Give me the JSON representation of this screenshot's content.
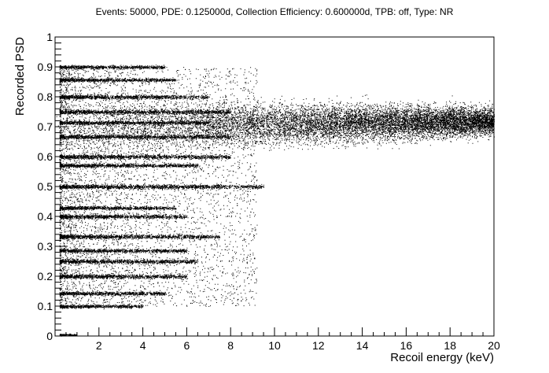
{
  "chart_data": {
    "type": "scatter",
    "title": "Events: 50000, PDE: 0.125000d, Collection Efficiency: 0.600000d, TPB: off, Type: NR",
    "xlabel": "Recoil energy (keV)",
    "ylabel": "Recorded PSD",
    "xlim": [
      0,
      20
    ],
    "ylim": [
      0,
      1
    ],
    "x_ticks": [
      "2",
      "4",
      "6",
      "8",
      "10",
      "12",
      "14",
      "16",
      "18",
      "20"
    ],
    "y_ticks": [
      "0",
      "0.1",
      "0.2",
      "0.3",
      "0.4",
      "0.5",
      "0.6",
      "0.7",
      "0.8",
      "0.9",
      "1"
    ],
    "grid": false,
    "legend": "none",
    "marker_color": "#000000",
    "events": 50000,
    "bands": [
      {
        "x_min": 0.2,
        "x_max": 1.0,
        "y_center": 0.005,
        "y_spread": 0.005
      },
      {
        "x_min": 0.2,
        "x_max": 9.5,
        "y_center": 0.5,
        "y_spread": 0.012
      },
      {
        "x_min": 0.2,
        "x_max": 7.5,
        "y_center": 0.333,
        "y_spread": 0.012
      },
      {
        "x_min": 0.2,
        "x_max": 8.0,
        "y_center": 0.667,
        "y_spread": 0.012
      },
      {
        "x_min": 0.2,
        "x_max": 6.5,
        "y_center": 0.25,
        "y_spread": 0.012
      },
      {
        "x_min": 0.2,
        "x_max": 8.0,
        "y_center": 0.75,
        "y_spread": 0.012
      },
      {
        "x_min": 0.2,
        "x_max": 6.0,
        "y_center": 0.4,
        "y_spread": 0.012
      },
      {
        "x_min": 0.2,
        "x_max": 8.0,
        "y_center": 0.6,
        "y_spread": 0.012
      },
      {
        "x_min": 0.2,
        "x_max": 6.0,
        "y_center": 0.2,
        "y_spread": 0.012
      },
      {
        "x_min": 0.2,
        "x_max": 7.0,
        "y_center": 0.8,
        "y_spread": 0.012
      },
      {
        "x_min": 0.2,
        "x_max": 5.0,
        "y_center": 0.143,
        "y_spread": 0.01
      },
      {
        "x_min": 0.2,
        "x_max": 5.5,
        "y_center": 0.857,
        "y_spread": 0.01
      },
      {
        "x_min": 0.2,
        "x_max": 5.5,
        "y_center": 0.429,
        "y_spread": 0.01
      },
      {
        "x_min": 0.2,
        "x_max": 6.5,
        "y_center": 0.571,
        "y_spread": 0.01
      },
      {
        "x_min": 0.2,
        "x_max": 6.0,
        "y_center": 0.286,
        "y_spread": 0.01
      },
      {
        "x_min": 0.2,
        "x_max": 7.0,
        "y_center": 0.714,
        "y_spread": 0.01
      },
      {
        "x_min": 0.2,
        "x_max": 4.0,
        "y_center": 0.1,
        "y_spread": 0.01
      },
      {
        "x_min": 0.2,
        "x_max": 5.0,
        "y_center": 0.9,
        "y_spread": 0.01
      }
    ]
  }
}
